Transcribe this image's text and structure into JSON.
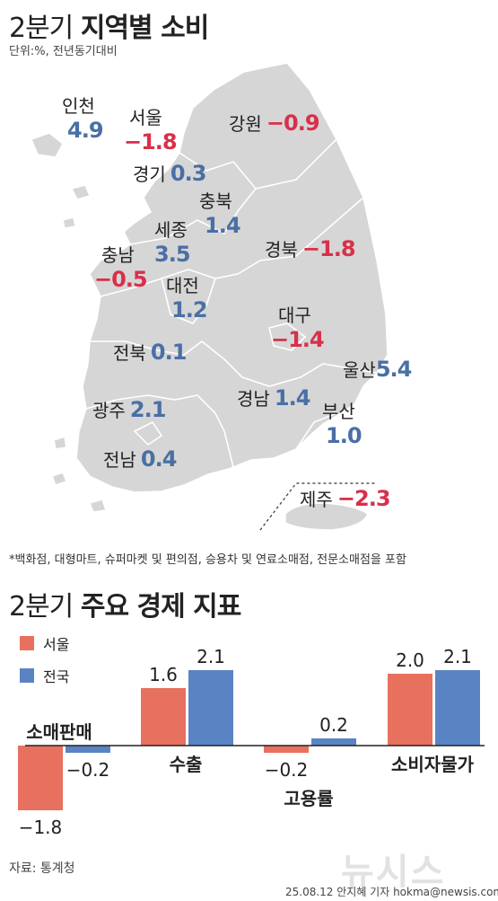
{
  "header": {
    "title_prefix": "2분기",
    "title_main": "지역별 소비",
    "unit": "단위:%, 전년동기대비"
  },
  "regions": [
    {
      "name": "인천",
      "value": "4.9",
      "sign": "pos"
    },
    {
      "name": "서울",
      "value": "−1.8",
      "sign": "neg"
    },
    {
      "name": "강원",
      "value": "−0.9",
      "sign": "neg"
    },
    {
      "name": "경기",
      "value": "0.3",
      "sign": "pos"
    },
    {
      "name": "충북",
      "value": "1.4",
      "sign": "pos"
    },
    {
      "name": "세종",
      "value": "3.5",
      "sign": "pos"
    },
    {
      "name": "충남",
      "value": "−0.5",
      "sign": "neg"
    },
    {
      "name": "경북",
      "value": "−1.8",
      "sign": "neg"
    },
    {
      "name": "대전",
      "value": "1.2",
      "sign": "pos"
    },
    {
      "name": "대구",
      "value": "−1.4",
      "sign": "neg"
    },
    {
      "name": "전북",
      "value": "0.1",
      "sign": "pos"
    },
    {
      "name": "울산",
      "value": "5.4",
      "sign": "pos"
    },
    {
      "name": "광주",
      "value": "2.1",
      "sign": "pos"
    },
    {
      "name": "경남",
      "value": "1.4",
      "sign": "pos"
    },
    {
      "name": "부산",
      "value": "1.0",
      "sign": "pos"
    },
    {
      "name": "전남",
      "value": "0.4",
      "sign": "pos"
    },
    {
      "name": "제주",
      "value": "−2.3",
      "sign": "neg"
    }
  ],
  "note": "*백화점, 대형마트, 슈퍼마켓 및 편의점, 승용차 및 연료소매점, 전문소매점을 포함",
  "indicators": {
    "title_prefix": "2분기",
    "title_main": "주요 경제 지표",
    "legend": [
      {
        "name": "서울",
        "color": "#e8705f"
      },
      {
        "name": "전국",
        "color": "#5a83c3"
      }
    ]
  },
  "chart_data": {
    "type": "bar",
    "categories": [
      "소매판매",
      "수출",
      "고용률",
      "소비자물가"
    ],
    "series": [
      {
        "name": "서울",
        "values": [
          -1.8,
          1.6,
          -0.2,
          2.0
        ],
        "labels": [
          "−1.8",
          "1.6",
          "−0.2",
          "2.0"
        ],
        "color": "#e8705f"
      },
      {
        "name": "전국",
        "values": [
          -0.2,
          2.1,
          0.2,
          2.1
        ],
        "labels": [
          "−0.2",
          "2.1",
          "0.2",
          "2.1"
        ],
        "color": "#5a83c3"
      }
    ]
  },
  "footer": {
    "source": "자료: 통계청",
    "watermark": "뉴시스",
    "credit": "25.08.12 안지혜 기자 hokma@newsis.com"
  }
}
